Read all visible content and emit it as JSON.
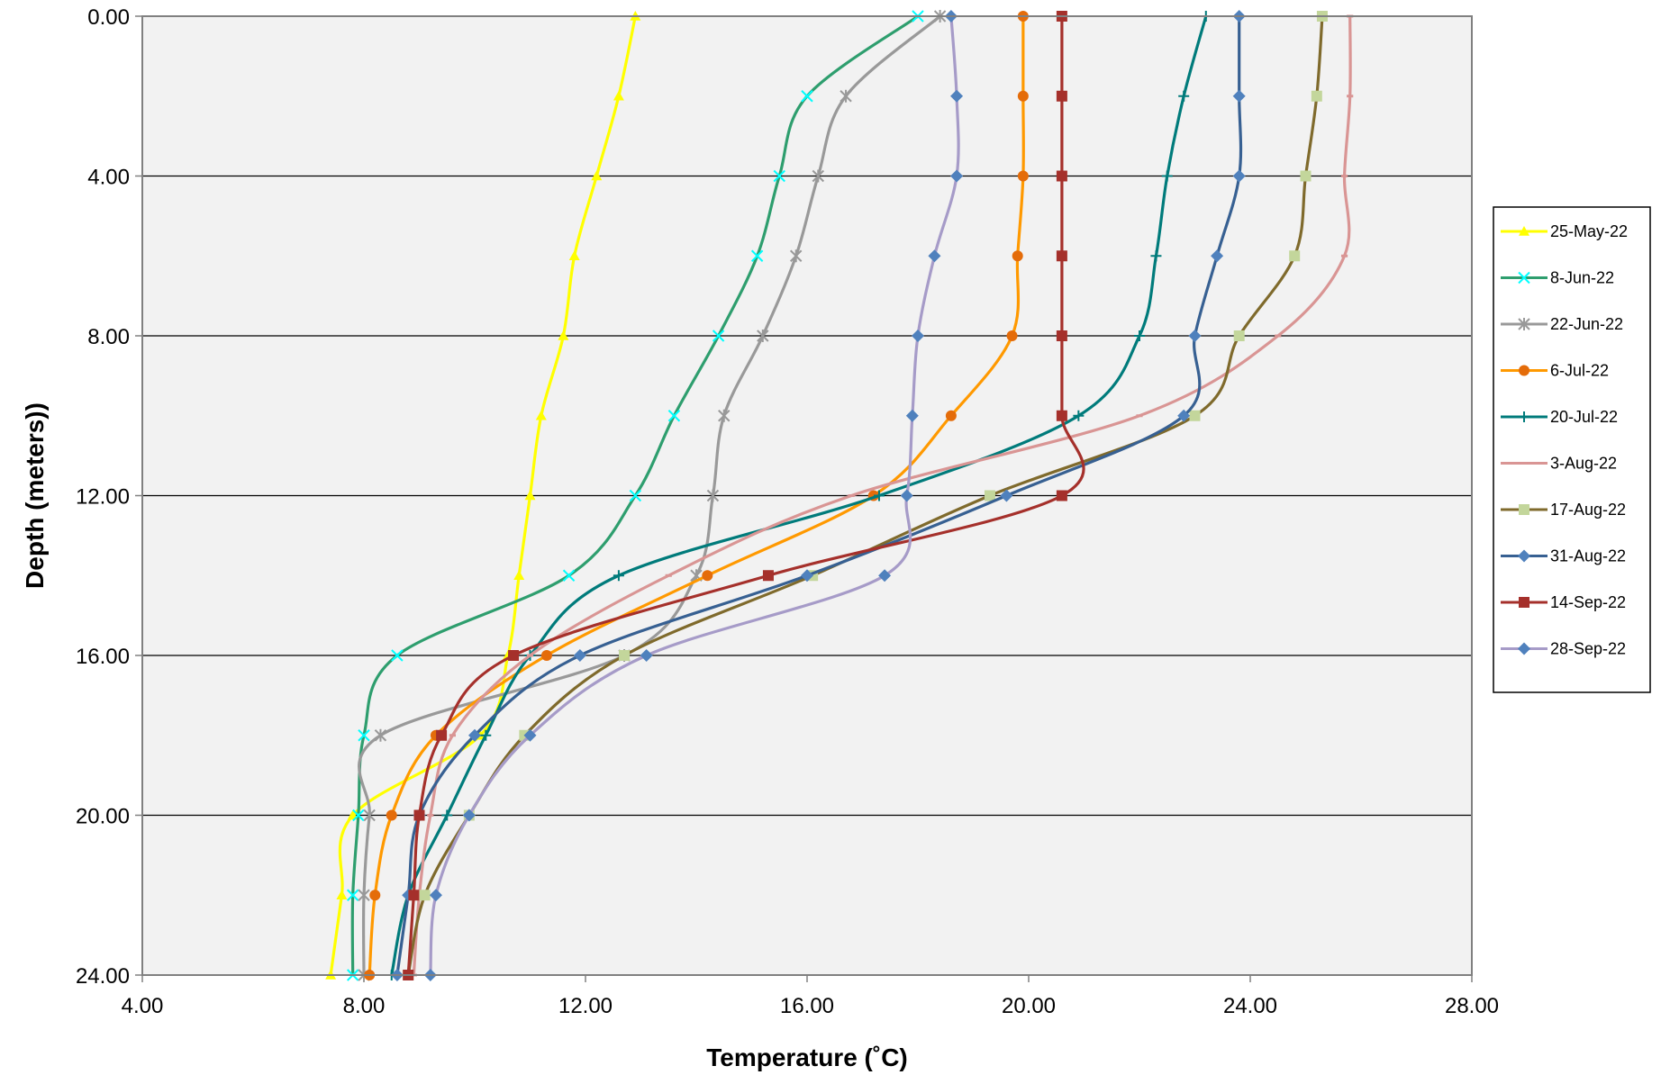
{
  "chart_data": {
    "type": "line",
    "title": "",
    "xlabel": "Temperature (˚C)",
    "ylabel": "Depth (meters))",
    "xlim": [
      4,
      28
    ],
    "ylim": [
      0,
      24
    ],
    "y_inverted": true,
    "x_ticks": [
      "4.00",
      "8.00",
      "12.00",
      "16.00",
      "20.00",
      "24.00",
      "28.00"
    ],
    "y_ticks": [
      "0.00",
      "4.00",
      "8.00",
      "12.00",
      "16.00",
      "20.00",
      "24.00"
    ],
    "grid": "horizontal",
    "plot_background": "#f2f2f2",
    "legend_position": "right",
    "series": [
      {
        "name": "25-May-22",
        "color": "#ffff00",
        "marker": "triangle",
        "points": [
          [
            12.9,
            0
          ],
          [
            12.6,
            2
          ],
          [
            12.2,
            4
          ],
          [
            11.8,
            6
          ],
          [
            11.6,
            8
          ],
          [
            11.2,
            10
          ],
          [
            11.0,
            12
          ],
          [
            10.8,
            14
          ],
          [
            10.6,
            16
          ],
          [
            10.1,
            18
          ],
          [
            7.8,
            20
          ],
          [
            7.6,
            22
          ],
          [
            7.4,
            24
          ]
        ]
      },
      {
        "name": "8-Jun-22",
        "color": "#2e9e6e",
        "marker": "x",
        "marker_color": "#00ffff",
        "points": [
          [
            18.0,
            0
          ],
          [
            16.0,
            2
          ],
          [
            15.5,
            4
          ],
          [
            15.1,
            6
          ],
          [
            14.4,
            8
          ],
          [
            13.6,
            10
          ],
          [
            12.9,
            12
          ],
          [
            11.7,
            14
          ],
          [
            8.6,
            16
          ],
          [
            8.0,
            18
          ],
          [
            7.9,
            20
          ],
          [
            7.8,
            22
          ],
          [
            7.8,
            24
          ]
        ]
      },
      {
        "name": "22-Jun-22",
        "color": "#999999",
        "marker": "star",
        "points": [
          [
            18.4,
            0
          ],
          [
            16.7,
            2
          ],
          [
            16.2,
            4
          ],
          [
            15.8,
            6
          ],
          [
            15.2,
            8
          ],
          [
            14.5,
            10
          ],
          [
            14.3,
            12
          ],
          [
            14.0,
            14
          ],
          [
            12.7,
            16
          ],
          [
            8.3,
            18
          ],
          [
            8.1,
            20
          ],
          [
            8.0,
            22
          ],
          [
            8.0,
            24
          ]
        ]
      },
      {
        "name": "6-Jul-22",
        "color": "#ff9900",
        "marker": "circle",
        "marker_color": "#e46c0a",
        "points": [
          [
            19.9,
            0
          ],
          [
            19.9,
            2
          ],
          [
            19.9,
            4
          ],
          [
            19.8,
            6
          ],
          [
            19.7,
            8
          ],
          [
            18.6,
            10
          ],
          [
            17.2,
            12
          ],
          [
            14.2,
            14
          ],
          [
            11.3,
            16
          ],
          [
            9.3,
            18
          ],
          [
            8.5,
            20
          ],
          [
            8.2,
            22
          ],
          [
            8.1,
            24
          ]
        ]
      },
      {
        "name": "20-Jul-22",
        "color": "#007b7b",
        "marker": "plus",
        "points": [
          [
            23.2,
            0
          ],
          [
            22.8,
            2
          ],
          [
            22.5,
            4
          ],
          [
            22.3,
            6
          ],
          [
            22.0,
            8
          ],
          [
            20.9,
            10
          ],
          [
            17.3,
            12
          ],
          [
            12.6,
            14
          ],
          [
            11.0,
            16
          ],
          [
            10.2,
            18
          ],
          [
            9.5,
            20
          ],
          [
            8.8,
            22
          ],
          [
            8.5,
            24
          ]
        ]
      },
      {
        "name": "3-Aug-22",
        "color": "#d99594",
        "marker": "dash",
        "points": [
          [
            25.8,
            0
          ],
          [
            25.8,
            2
          ],
          [
            25.7,
            4
          ],
          [
            25.7,
            6
          ],
          [
            24.5,
            8
          ],
          [
            22.0,
            10
          ],
          [
            16.8,
            12
          ],
          [
            13.5,
            14
          ],
          [
            11.0,
            16
          ],
          [
            9.6,
            18
          ],
          [
            9.2,
            20
          ],
          [
            9.0,
            22
          ],
          [
            8.9,
            24
          ]
        ]
      },
      {
        "name": "17-Aug-22",
        "color": "#7f6a2c",
        "marker": "square",
        "marker_color": "#c3d69b",
        "points": [
          [
            25.3,
            0
          ],
          [
            25.2,
            2
          ],
          [
            25.0,
            4
          ],
          [
            24.8,
            6
          ],
          [
            23.8,
            8
          ],
          [
            23.0,
            10
          ],
          [
            19.3,
            12
          ],
          [
            16.1,
            14
          ],
          [
            12.7,
            16
          ],
          [
            10.9,
            18
          ],
          [
            9.9,
            20
          ],
          [
            9.1,
            22
          ],
          [
            8.8,
            24
          ]
        ]
      },
      {
        "name": "31-Aug-22",
        "color": "#376092",
        "marker": "diamond",
        "marker_color": "#4f81bd",
        "points": [
          [
            23.8,
            0
          ],
          [
            23.8,
            2
          ],
          [
            23.8,
            4
          ],
          [
            23.4,
            6
          ],
          [
            23.0,
            8
          ],
          [
            22.8,
            10
          ],
          [
            19.6,
            12
          ],
          [
            16.0,
            14
          ],
          [
            11.9,
            16
          ],
          [
            10.0,
            18
          ],
          [
            9.0,
            20
          ],
          [
            8.8,
            22
          ],
          [
            8.6,
            24
          ]
        ]
      },
      {
        "name": "14-Sep-22",
        "color": "#a5302b",
        "marker": "square",
        "points": [
          [
            20.6,
            0
          ],
          [
            20.6,
            2
          ],
          [
            20.6,
            4
          ],
          [
            20.6,
            6
          ],
          [
            20.6,
            8
          ],
          [
            20.6,
            10
          ],
          [
            20.6,
            12
          ],
          [
            15.3,
            14
          ],
          [
            10.7,
            16
          ],
          [
            9.4,
            18
          ],
          [
            9.0,
            20
          ],
          [
            8.9,
            22
          ],
          [
            8.8,
            24
          ]
        ]
      },
      {
        "name": "28-Sep-22",
        "color": "#a69bc8",
        "marker": "diamond",
        "marker_color": "#4f81bd",
        "points": [
          [
            18.6,
            0
          ],
          [
            18.7,
            2
          ],
          [
            18.7,
            4
          ],
          [
            18.3,
            6
          ],
          [
            18.0,
            8
          ],
          [
            17.9,
            10
          ],
          [
            17.8,
            12
          ],
          [
            17.4,
            14
          ],
          [
            13.1,
            16
          ],
          [
            11.0,
            18
          ],
          [
            9.9,
            20
          ],
          [
            9.3,
            22
          ],
          [
            9.2,
            24
          ]
        ]
      }
    ]
  }
}
